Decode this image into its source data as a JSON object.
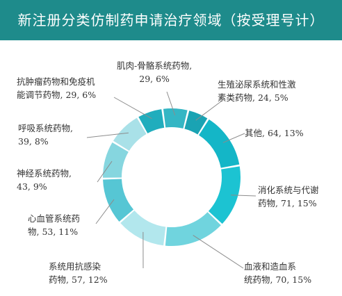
{
  "header": {
    "title": "新注册分类仿制药申请治疗领域（按受理号计）"
  },
  "colors": {
    "title_bar": "#1e8b8b",
    "slices": [
      "#1aa3b3",
      "#14b6c7",
      "#1cc3d2",
      "#70d4de",
      "#b2e7ed",
      "#56c6d4",
      "#86d6df",
      "#a9e1e8",
      "#20adbd",
      "#34b6c4",
      "#0e8a91"
    ]
  },
  "chart_data": {
    "type": "pie",
    "style": "donut",
    "title": "新注册分类仿制药申请治疗领域（按受理号计）",
    "slices": [
      {
        "name": "生殖泌尿系统和性激素类药物",
        "value": 24,
        "percent": "5%",
        "label_lines": [
          "生殖泌尿系统和性激",
          "素类药物, 24, 5%"
        ]
      },
      {
        "name": "其他",
        "value": 64,
        "percent": "13%",
        "label_lines": [
          "其他, 64, 13%"
        ]
      },
      {
        "name": "消化系统与代谢药物",
        "value": 71,
        "percent": "15%",
        "label_lines": [
          "消化系统与代谢",
          "药物, 71, 15%"
        ]
      },
      {
        "name": "血液和造血系统药物",
        "value": 70,
        "percent": "15%",
        "label_lines": [
          "血液和造血系",
          "统药物, 70, 15%"
        ]
      },
      {
        "name": "系统用抗感染药物",
        "value": 57,
        "percent": "12%",
        "label_lines": [
          "系统用抗感染",
          "药物, 57, 12%"
        ]
      },
      {
        "name": "心血管系统药物",
        "value": 53,
        "percent": "11%",
        "label_lines": [
          "心血管系统药",
          "物, 53, 11%"
        ]
      },
      {
        "name": "神经系统药物",
        "value": 43,
        "percent": "9%",
        "label_lines": [
          "神经系统药物,",
          "43, 9%"
        ]
      },
      {
        "name": "呼吸系统药物",
        "value": 39,
        "percent": "8%",
        "label_lines": [
          "呼吸系统药物,",
          "39, 8%"
        ]
      },
      {
        "name": "抗肿瘤药物和免疫机能调节药物",
        "value": 29,
        "percent": "6%",
        "label_lines": [
          "抗肿瘤药物和免疫机",
          "能调节药物, 29, 6%"
        ]
      },
      {
        "name": "肌肉-骨骼系统药物",
        "value": 29,
        "percent": "6%",
        "label_lines": [
          "肌肉-骨骼系统药物,",
          "29, 6%"
        ]
      }
    ]
  }
}
